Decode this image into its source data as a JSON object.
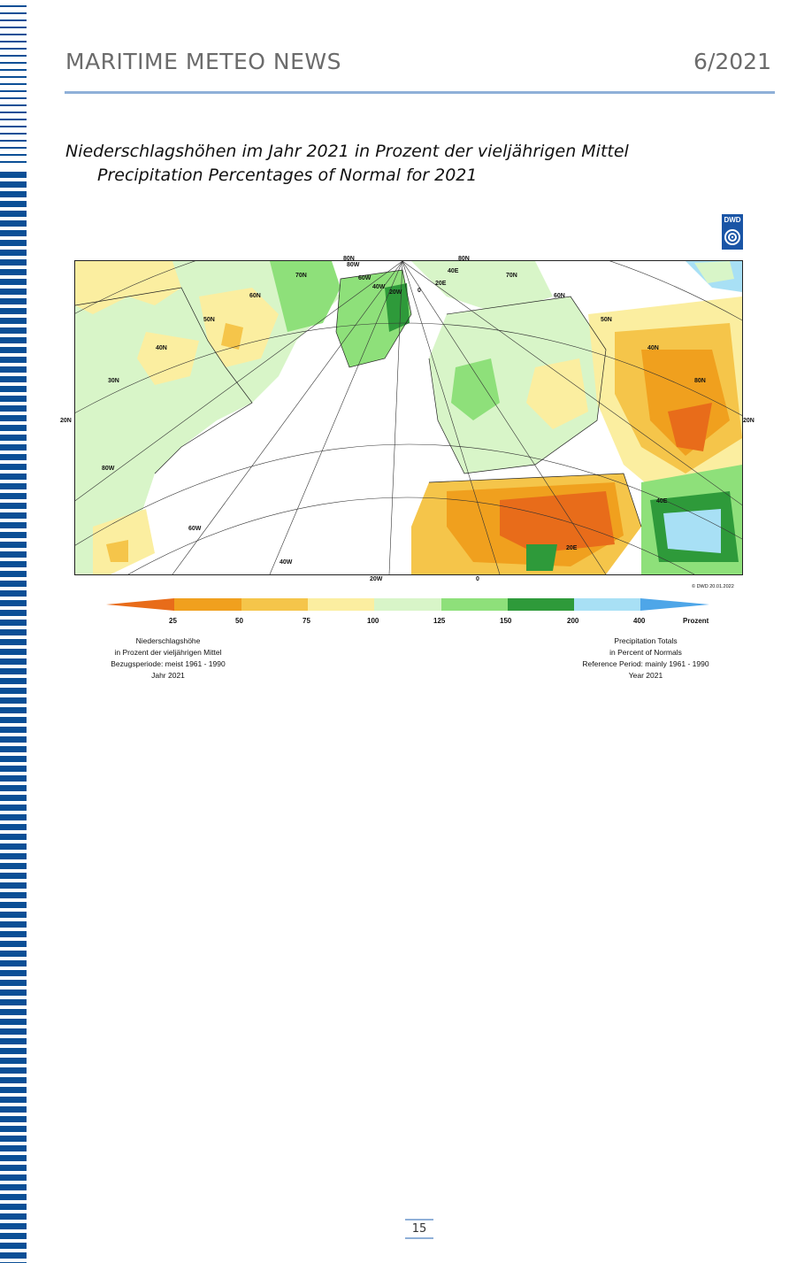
{
  "header": {
    "title": "MARITIME METEO NEWS",
    "issue": "6/2021"
  },
  "caption": {
    "german": "Niederschlagshöhen im Jahr 2021 in Prozent der vieljährigen Mittel",
    "english": "Precipitation Percentages of Normal for 2021"
  },
  "logo": {
    "text": "DWD"
  },
  "map": {
    "labels": {
      "n80a": "80N",
      "n80b": "80N",
      "w80": "80W",
      "w60a": "60W",
      "w40a": "40W",
      "w20a": "20W",
      "n70a": "70N",
      "n70b": "70N",
      "zero": "0",
      "e20a": "20E",
      "n60a": "60N",
      "n60b": "60N",
      "n50a": "50N",
      "n50b": "50N",
      "n40a": "40N",
      "n40b": "40N",
      "e40a": "40E",
      "n30a": "30N",
      "n20a": "20N",
      "n20b": "20N",
      "e80": "80N",
      "w80b": "80W",
      "w60b": "60W",
      "w40b": "40W",
      "w20b": "20W",
      "zero_b": "0",
      "e20b": "20E",
      "e40b": "40E"
    },
    "credit": "© DWD 20.01.2022"
  },
  "legend": {
    "ticks": [
      "25",
      "50",
      "75",
      "100",
      "125",
      "150",
      "200",
      "400"
    ],
    "unit": "Prozent",
    "colors": [
      "#e86c1a",
      "#f0a01e",
      "#f5c54a",
      "#fbeea0",
      "#d8f5c8",
      "#8ee07a",
      "#2e9a3a",
      "#a8e0f5",
      "#4ea6e8"
    ]
  },
  "notes": {
    "left": [
      "Niederschlagshöhe",
      "in Prozent der vieljährigen Mittel",
      "Bezugsperiode: meist 1961 - 1990",
      "Jahr 2021"
    ],
    "right": [
      "Precipitation Totals",
      "in Percent of Normals",
      "Reference Period: mainly 1961 - 1990",
      "Year 2021"
    ]
  },
  "footer": {
    "page": "15"
  }
}
